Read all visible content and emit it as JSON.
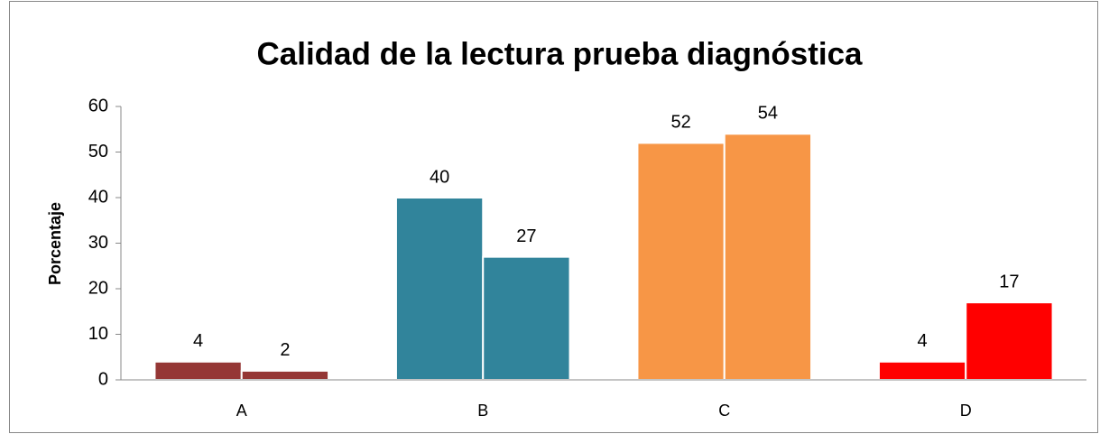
{
  "chart_data": {
    "type": "bar",
    "title": "Calidad de la lectura prueba diagnóstica",
    "y_label": "Porcentaje",
    "categories": [
      "A",
      "B",
      "C",
      "D"
    ],
    "colors": [
      "#953735",
      "#31849b",
      "#f79646",
      "#ff0000"
    ],
    "series": [
      {
        "values": [
          4,
          40,
          52,
          4
        ]
      },
      {
        "values": [
          2,
          27,
          54,
          17
        ]
      }
    ],
    "ylim": [
      0,
      60
    ],
    "yticks": [
      0,
      10,
      20,
      30,
      40,
      50,
      60
    ],
    "grid": false
  }
}
